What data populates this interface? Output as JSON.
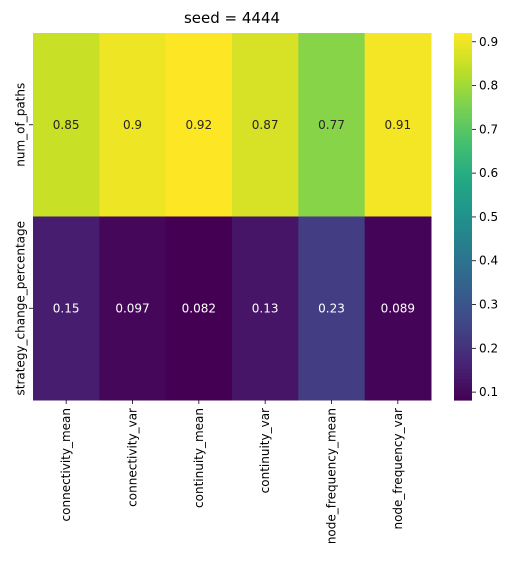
{
  "chart_data": {
    "type": "heatmap",
    "title": "seed = 4444",
    "xlabel": "",
    "ylabel": "",
    "x_categories": [
      "connectivity_mean",
      "connectivity_var",
      "continuity_mean",
      "continuity_var",
      "node_frequency_mean",
      "node_frequency_var"
    ],
    "y_categories": [
      "num_of_paths",
      "strategy_change_percentage"
    ],
    "values": [
      [
        0.85,
        0.9,
        0.92,
        0.87,
        0.77,
        0.91
      ],
      [
        0.15,
        0.097,
        0.082,
        0.13,
        0.23,
        0.089
      ]
    ],
    "annotations": [
      [
        "0.85",
        "0.9",
        "0.92",
        "0.87",
        "0.77",
        "0.91"
      ],
      [
        "0.15",
        "0.097",
        "0.082",
        "0.13",
        "0.23",
        "0.089"
      ]
    ],
    "colormap": "viridis",
    "colorbar": {
      "vmin": 0.082,
      "vmax": 0.92,
      "ticks": [
        0.1,
        0.2,
        0.3,
        0.4,
        0.5,
        0.6,
        0.7,
        0.8,
        0.9
      ],
      "tick_labels": [
        "0.1",
        "0.2",
        "0.3",
        "0.4",
        "0.5",
        "0.6",
        "0.7",
        "0.8",
        "0.9"
      ]
    }
  }
}
